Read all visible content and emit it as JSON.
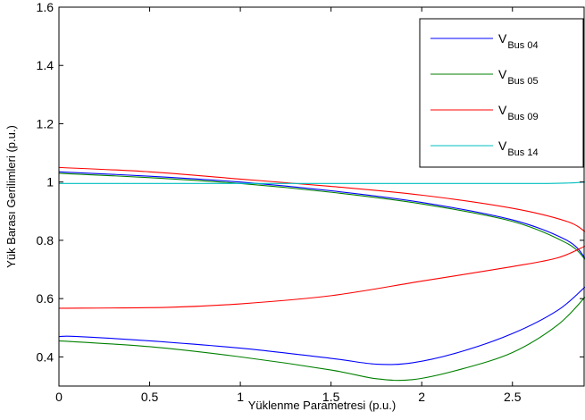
{
  "chart_data": {
    "type": "line",
    "xlabel": "Yüklenme Parametresi (p.u.)",
    "ylabel": "Yük Barası Gerilimleri (p.u.)",
    "xlim": [
      0,
      2.9
    ],
    "ylim": [
      0.3,
      1.6
    ],
    "xticks": [
      0,
      0.5,
      1,
      1.5,
      2,
      2.5
    ],
    "yticks": [
      0.4,
      0.6,
      0.8,
      1,
      1.2,
      1.4,
      1.6
    ],
    "xtick_labels": [
      "0",
      "0.5",
      "1",
      "1.5",
      "2",
      "2.5"
    ],
    "ytick_labels": [
      "0.4",
      "0.6",
      "0.8",
      "1",
      "1.2",
      "1.4",
      "1.6"
    ],
    "grid": false,
    "legend_position": "top-right",
    "series": [
      {
        "name": "V",
        "sub": "Bus 04",
        "color": "#0000ff",
        "upper": [
          [
            0,
            1.035
          ],
          [
            0.5,
            1.02
          ],
          [
            1,
            1.0
          ],
          [
            1.5,
            0.97
          ],
          [
            2,
            0.93
          ],
          [
            2.5,
            0.87
          ],
          [
            2.8,
            0.8
          ],
          [
            2.9,
            0.74
          ]
        ],
        "lower": [
          [
            0,
            0.47
          ],
          [
            0.1,
            0.47
          ],
          [
            0.5,
            0.455
          ],
          [
            1,
            0.43
          ],
          [
            1.5,
            0.395
          ],
          [
            1.75,
            0.375
          ],
          [
            1.95,
            0.38
          ],
          [
            2.2,
            0.415
          ],
          [
            2.5,
            0.48
          ],
          [
            2.75,
            0.56
          ],
          [
            2.9,
            0.64
          ]
        ]
      },
      {
        "name": "V",
        "sub": "Bus 05",
        "color": "#008000",
        "upper": [
          [
            0,
            1.03
          ],
          [
            0.5,
            1.015
          ],
          [
            1,
            0.995
          ],
          [
            1.5,
            0.965
          ],
          [
            2,
            0.925
          ],
          [
            2.5,
            0.865
          ],
          [
            2.8,
            0.79
          ],
          [
            2.9,
            0.735
          ]
        ],
        "lower": [
          [
            0,
            0.455
          ],
          [
            0.5,
            0.435
          ],
          [
            1,
            0.4
          ],
          [
            1.5,
            0.355
          ],
          [
            1.75,
            0.325
          ],
          [
            1.95,
            0.322
          ],
          [
            2.2,
            0.355
          ],
          [
            2.5,
            0.415
          ],
          [
            2.75,
            0.51
          ],
          [
            2.9,
            0.605
          ]
        ]
      },
      {
        "name": "V",
        "sub": "Bus 09",
        "color": "#ff0000",
        "upper": [
          [
            0,
            1.05
          ],
          [
            0.5,
            1.035
          ],
          [
            1,
            1.01
          ],
          [
            1.5,
            0.985
          ],
          [
            2,
            0.955
          ],
          [
            2.5,
            0.91
          ],
          [
            2.8,
            0.865
          ],
          [
            2.9,
            0.83
          ]
        ],
        "lower": [
          [
            0,
            0.567
          ],
          [
            0.6,
            0.57
          ],
          [
            1,
            0.582
          ],
          [
            1.5,
            0.61
          ],
          [
            2,
            0.66
          ],
          [
            2.5,
            0.71
          ],
          [
            2.75,
            0.74
          ],
          [
            2.9,
            0.78
          ]
        ]
      },
      {
        "name": "V",
        "sub": "Bus 14",
        "color": "#00bfbf",
        "upper": [
          [
            0,
            0.995
          ],
          [
            1,
            0.995
          ],
          [
            2,
            0.995
          ],
          [
            2.7,
            0.995
          ],
          [
            2.9,
            1.0
          ]
        ],
        "lower": []
      }
    ]
  }
}
